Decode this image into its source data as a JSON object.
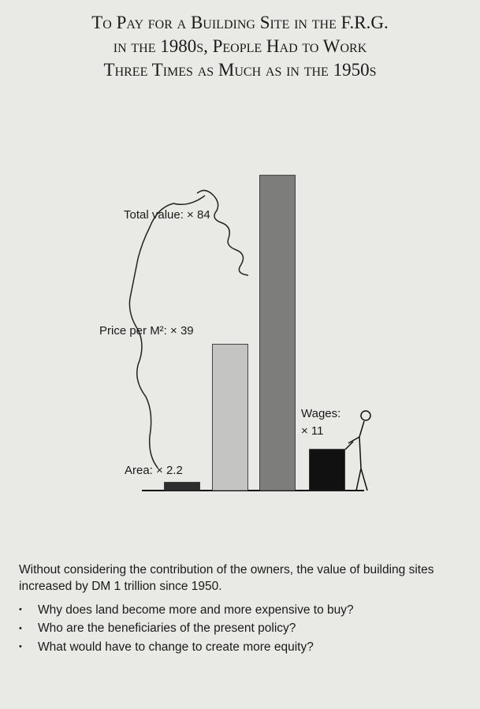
{
  "chart_data": {
    "type": "bar",
    "title": [
      "To Pay for a Building Site in the F.R.G.",
      "in the 1980s, People Had to Work",
      "Three Times as Much as in the 1950s"
    ],
    "values": [
      2.2,
      39,
      84,
      11
    ],
    "value_labels": [
      "Area: × 2.2",
      "Price per M²: × 39",
      "Total value: × 84",
      "Wages:\n× 11"
    ],
    "colors": [
      "#2e2e2e",
      "#c4c4c2",
      "#7d7d7b",
      "#111111"
    ],
    "caption": "Without considering the contribution of the owners, the value of building sites increased by DM 1 trillion since 1950.",
    "questions": [
      "Why does land become more and more expensive to buy?",
      "Who are the beneficiaries of the present policy?",
      "What would have to change to create more equity?"
    ]
  }
}
